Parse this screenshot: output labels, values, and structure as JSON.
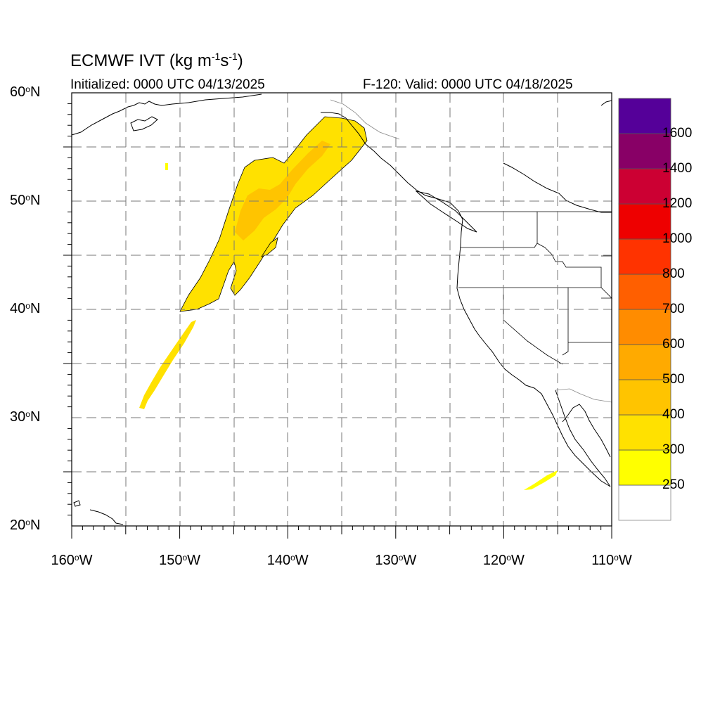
{
  "title": {
    "main": "ECMWF IVT (kg m",
    "exp1": "-1",
    "mid": "s",
    "exp2": "-1",
    "end": ")"
  },
  "initialized": "Initialized: 0000 UTC 04/13/2025",
  "valid": "F-120: Valid: 0000 UTC 04/18/2025",
  "lat_labels": [
    {
      "value": 60,
      "text": "60",
      "dir": "N"
    },
    {
      "value": 50,
      "text": "50",
      "dir": "N"
    },
    {
      "value": 40,
      "text": "40",
      "dir": "N"
    },
    {
      "value": 30,
      "text": "30",
      "dir": "N"
    },
    {
      "value": 20,
      "text": "20",
      "dir": "N"
    }
  ],
  "lon_labels": [
    {
      "value": -160,
      "text": "160",
      "dir": "W"
    },
    {
      "value": -150,
      "text": "150",
      "dir": "W"
    },
    {
      "value": -140,
      "text": "140",
      "dir": "W"
    },
    {
      "value": -130,
      "text": "130",
      "dir": "W"
    },
    {
      "value": -120,
      "text": "120",
      "dir": "W"
    },
    {
      "value": -110,
      "text": "110",
      "dir": "W"
    }
  ],
  "colorbar": {
    "labels": [
      "250",
      "300",
      "400",
      "500",
      "600",
      "700",
      "800",
      "1000",
      "1200",
      "1400",
      "1600"
    ],
    "colors": [
      "#ffffff",
      "#ffff00",
      "#ffe100",
      "#ffc400",
      "#ffaa00",
      "#ff8c00",
      "#ff5f00",
      "#ff3300",
      "#ee0000",
      "#cc0033",
      "#880066",
      "#550099"
    ]
  },
  "plumes": [
    {
      "name": "main-atmospheric-river",
      "level": 300
    },
    {
      "name": "plume-core",
      "level": 400
    },
    {
      "name": "southern-streak",
      "level": 300
    },
    {
      "name": "baja-streak",
      "level": 250
    }
  ],
  "layers": [
    "coastline",
    "us-state-borders",
    "country-borders",
    "lat-lon-grid"
  ]
}
